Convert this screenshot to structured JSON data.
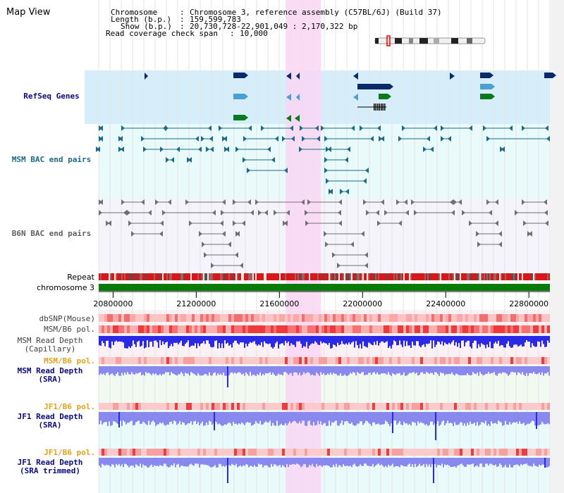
{
  "title": "Map View",
  "info": {
    "chromosome_label": "Chromosome",
    "chromosome_value": "Chromosome 3, reference assembly (C57BL/6J) (Build 37)",
    "length_label": "Length (b.p.)",
    "length_value": "159,599,783",
    "show_label": "Show (b.p.)",
    "show_value": "20,730,728-22,901,049 : 2,170,322 bp",
    "coverage_label": "Read coverage check span",
    "coverage_value": "10,000"
  },
  "tracks": {
    "refseq": "RefSeq Genes",
    "msm_bac": "MSM BAC end pairs",
    "b6n_bac": "B6N BAC end pairs",
    "repeat": "Repeat",
    "chromosome": "chromosome 3",
    "dbsnp": "dbSNP(Mouse)",
    "msm_b6_pol_1": "MSM/B6 pol.",
    "msm_depth_cap_1": "MSM Read Depth",
    "msm_depth_cap_2": "(Capillary)",
    "msm_b6_pol_2": "MSM/B6 pol.",
    "msm_depth_sra_1": "MSM Read Depth",
    "msm_depth_sra_2": "(SRA)",
    "jf1_b6_pol_1": "JF1/B6 pol.",
    "jf1_depth_sra_1": "JF1 Read Depth",
    "jf1_depth_sra_2": "(SRA)",
    "jf1_b6_pol_2": "JF1/B6 pol.",
    "jf1_depth_trim_1": "JF1 Read Depth",
    "jf1_depth_trim_2": "(SRA trimmed)"
  },
  "axis": {
    "ticks": [
      "20800000",
      "21200000",
      "21600000",
      "22000000",
      "22400000",
      "22800000"
    ],
    "tick_values": [
      20800000,
      21200000,
      21600000,
      22000000,
      22400000,
      22800000
    ],
    "start": 20730728,
    "end": 22901049
  },
  "highlight": {
    "start": 21630000,
    "end": 21800000
  },
  "colors": {
    "refseq_bg": "#d6eefa",
    "msm_bg": "#e8fafa",
    "b6n_bg": "#f4f4fa",
    "highlight": "#f9d6f3",
    "gene_navy": "#0a2a6a",
    "gene_light": "#4aa0d0",
    "gene_green": "#0b7a1a",
    "msm_color": "#1a6a88",
    "b6n_color": "#707070",
    "chrom_green": "#0a7a0a",
    "depth_blue": "#2a2ae6",
    "depth_light": "#8888ee",
    "label_navy": "#0a0a8a",
    "label_orange": "#e8a020"
  }
}
